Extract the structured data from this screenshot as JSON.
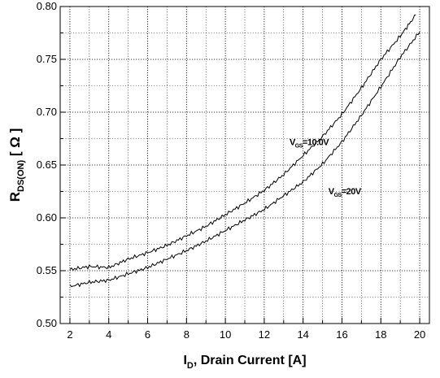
{
  "chart_data": {
    "type": "line",
    "title": "",
    "xlabel": {
      "main": "I",
      "sub": "D",
      "rest": ", Drain Current [A]"
    },
    "ylabel": {
      "main": "R",
      "sub": "DS(ON)",
      "rest": " [ Ω ]"
    },
    "xlim": [
      1.5,
      20.5
    ],
    "ylim": [
      0.5,
      0.8
    ],
    "xticks": [
      2,
      4,
      6,
      8,
      10,
      12,
      14,
      16,
      18,
      20
    ],
    "xtick_labels": [
      "2",
      "4",
      "6",
      "8",
      "10",
      "12",
      "14",
      "16",
      "18",
      "20"
    ],
    "yticks": [
      0.5,
      0.55,
      0.6,
      0.65,
      0.7,
      0.75,
      0.8
    ],
    "ytick_labels": [
      "0.50",
      "0.55",
      "0.60",
      "0.65",
      "0.70",
      "0.75",
      "0.80"
    ],
    "grid": true,
    "series": [
      {
        "name": "VGS=10.0V",
        "x": [
          2,
          3,
          4,
          5,
          6,
          7,
          8,
          9,
          10,
          11,
          12,
          13,
          14,
          15,
          16,
          17,
          18,
          19,
          19.8
        ],
        "values": [
          0.551,
          0.554,
          0.553,
          0.561,
          0.567,
          0.574,
          0.583,
          0.592,
          0.603,
          0.614,
          0.626,
          0.641,
          0.659,
          0.677,
          0.698,
          0.723,
          0.75,
          0.772,
          0.792
        ]
      },
      {
        "name": "VGS=20V",
        "x": [
          2,
          3,
          4,
          5,
          6,
          7,
          8,
          9,
          10,
          11,
          12,
          13,
          14,
          15,
          16,
          17,
          18,
          19,
          20
        ],
        "values": [
          0.535,
          0.539,
          0.541,
          0.547,
          0.553,
          0.561,
          0.569,
          0.578,
          0.588,
          0.598,
          0.608,
          0.621,
          0.634,
          0.651,
          0.672,
          0.697,
          0.724,
          0.752,
          0.776
        ]
      }
    ],
    "annotations": [
      {
        "main": "V",
        "sub": "GS",
        "rest": "=10.0V",
        "x": 13.3,
        "y": 0.669
      },
      {
        "main": "V",
        "sub": "GS",
        "rest": "=20V",
        "x": 15.3,
        "y": 0.6225
      }
    ]
  }
}
